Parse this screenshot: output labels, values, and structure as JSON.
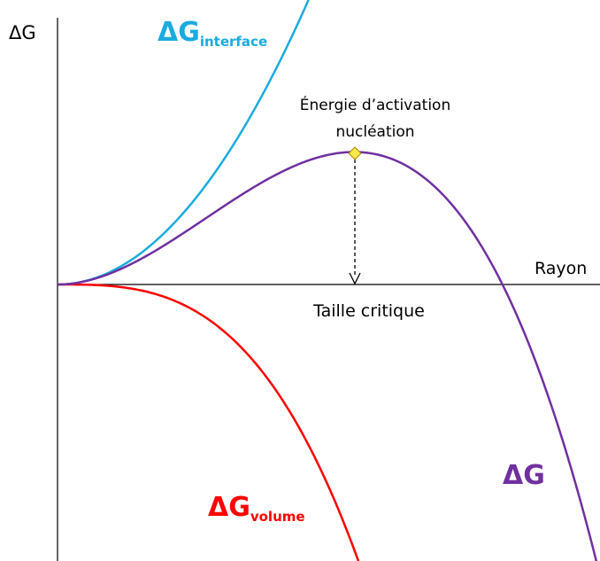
{
  "axes": {
    "y_label": "ΔG",
    "x_label": "Rayon"
  },
  "curves": [
    {
      "label": "ΔG",
      "subscript": "interface"
    },
    {
      "label": "ΔG",
      "subscript": "volume"
    },
    {
      "label": "ΔG"
    }
  ],
  "annotations": {
    "activation": [
      "Énergie d’activation",
      "nucléation"
    ],
    "critical": "Taille critique"
  }
}
